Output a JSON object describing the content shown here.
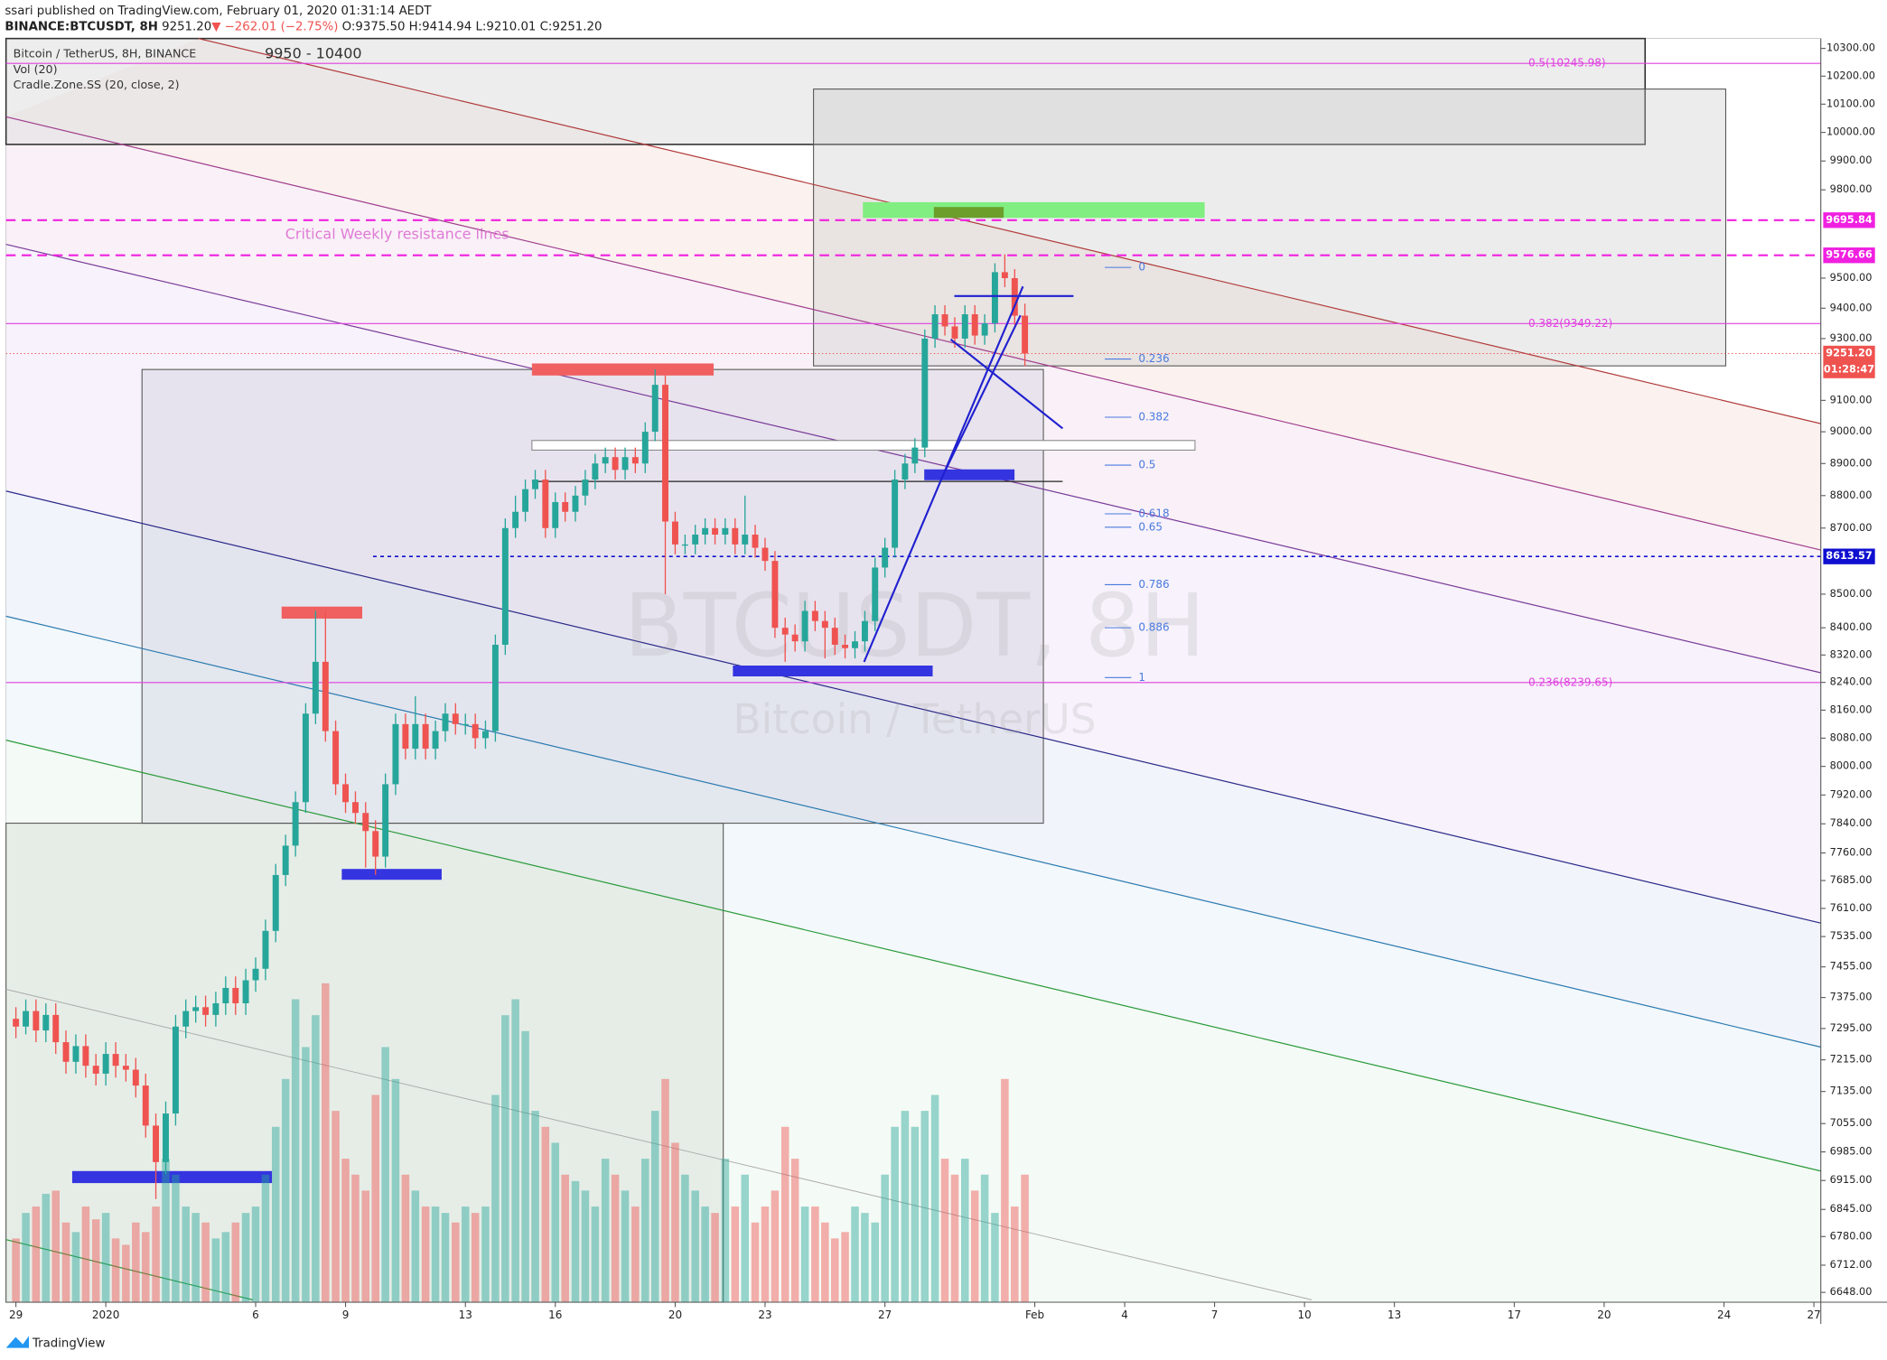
{
  "header": {
    "author_line": "ssari published on TradingView.com, February 01, 2020 01:31:14 AEDT",
    "symbol": "BINANCE:BTCUSDT, 8H",
    "last": "9251.20",
    "change": "▼ −262.01 (−2.75%)",
    "ohlc": "O:9375.50 H:9414.94 L:9210.01 C:9251.20"
  },
  "legend": [
    "Bitcoin / TetherUS, 8H, BINANCE",
    "Vol (20)",
    "Cradle.Zone.SS (20, close, 2)"
  ],
  "watermark": {
    "symbol": "BTCUSDT, 8H",
    "name": "Bitcoin / TetherUS"
  },
  "footer": "TradingView",
  "chart_data": {
    "type": "candlestick",
    "log_scale": true,
    "up_color": "#26a69a",
    "down_color": "#ef5350",
    "annotations": {
      "zone": "9950 - 10400",
      "resistance": "Critical Weekly resistance lines"
    },
    "x": [
      -3,
      -2.67,
      -2.33,
      -2,
      -1.67,
      -1.33,
      -1,
      -0.67,
      -0.33,
      0,
      0.33,
      0.67,
      1,
      1.33,
      1.67,
      2,
      2.33,
      2.67,
      3,
      3.33,
      3.67,
      4,
      4.33,
      4.67,
      5,
      5.33,
      5.67,
      6,
      6.33,
      6.67,
      7,
      7.33,
      7.67,
      8,
      8.33,
      8.67,
      9,
      9.33,
      9.67,
      10,
      10.33,
      10.67,
      11,
      11.33,
      11.67,
      12,
      12.33,
      12.67,
      13,
      13.33,
      13.67,
      14,
      14.33,
      14.67,
      15,
      15.33,
      15.67,
      16,
      16.33,
      16.67,
      17,
      17.33,
      17.67,
      18,
      18.33,
      18.67,
      19,
      19.33,
      19.67,
      20,
      20.33,
      20.67,
      21,
      21.33,
      21.67,
      22,
      22.33,
      22.67,
      23,
      23.33,
      23.67,
      24,
      24.33,
      24.67,
      25,
      25.33,
      25.67,
      26,
      26.33,
      26.67,
      27,
      27.33,
      27.67,
      28,
      28.33,
      28.67,
      29,
      29.33,
      29.67,
      30,
      30.33,
      30.67
    ],
    "open": [
      7320,
      7300,
      7340,
      7290,
      7330,
      7260,
      7210,
      7250,
      7200,
      7180,
      7230,
      7200,
      7190,
      7150,
      7050,
      6960,
      7080,
      7300,
      7340,
      7350,
      7330,
      7360,
      7400,
      7360,
      7420,
      7450,
      7550,
      7700,
      7780,
      7900,
      8150,
      8300,
      8100,
      7950,
      7900,
      7870,
      7820,
      7750,
      7950,
      8120,
      8050,
      8120,
      8050,
      8100,
      8150,
      8120,
      8120,
      8080,
      8100,
      8350,
      8700,
      8750,
      8820,
      8850,
      8700,
      8780,
      8750,
      8800,
      8850,
      8900,
      8920,
      8880,
      8920,
      8900,
      9000,
      9150,
      8720,
      8650,
      8650,
      8680,
      8700,
      8680,
      8700,
      8650,
      8680,
      8640,
      8600,
      8400,
      8380,
      8360,
      8450,
      8420,
      8400,
      8350,
      8340,
      8360,
      8420,
      8580,
      8640,
      8850,
      8900,
      8950,
      9300,
      9380,
      9340,
      9300,
      9380,
      9310,
      9350,
      9520,
      9500,
      9375.5
    ],
    "high": [
      7350,
      7370,
      7370,
      7360,
      7360,
      7290,
      7280,
      7280,
      7230,
      7260,
      7260,
      7230,
      7220,
      7180,
      7080,
      7110,
      7330,
      7370,
      7380,
      7380,
      7390,
      7430,
      7430,
      7450,
      7480,
      7580,
      7730,
      7810,
      7930,
      8180,
      8450,
      8450,
      8130,
      7980,
      7930,
      7900,
      7850,
      7980,
      8150,
      8150,
      8200,
      8150,
      8130,
      8180,
      8180,
      8150,
      8150,
      8130,
      8380,
      8730,
      8800,
      8850,
      8880,
      8880,
      8810,
      8810,
      8830,
      8880,
      8930,
      8950,
      8950,
      8950,
      8950,
      9030,
      9200,
      9180,
      8750,
      8680,
      8710,
      8730,
      8730,
      8730,
      8730,
      8800,
      8710,
      8670,
      8630,
      8430,
      8410,
      8480,
      8480,
      8450,
      8430,
      8380,
      8390,
      8450,
      8610,
      8670,
      8880,
      8930,
      8980,
      9330,
      9410,
      9410,
      9370,
      9410,
      9410,
      9380,
      9550,
      9580,
      9530,
      9414.94
    ],
    "low": [
      7270,
      7280,
      7260,
      7260,
      7230,
      7180,
      7180,
      7170,
      7150,
      7150,
      7170,
      7160,
      7120,
      7020,
      6870,
      6930,
      7050,
      7270,
      7310,
      7300,
      7300,
      7330,
      7330,
      7330,
      7390,
      7420,
      7520,
      7670,
      7750,
      7870,
      8120,
      8070,
      7920,
      7870,
      7840,
      7720,
      7700,
      7720,
      7920,
      8020,
      8020,
      8020,
      8020,
      8070,
      8090,
      8090,
      8050,
      8050,
      8070,
      8320,
      8670,
      8720,
      8790,
      8670,
      8670,
      8720,
      8720,
      8770,
      8820,
      8870,
      8850,
      8850,
      8870,
      8870,
      8970,
      8500,
      8620,
      8620,
      8620,
      8650,
      8650,
      8650,
      8620,
      8620,
      8610,
      8570,
      8370,
      8300,
      8330,
      8330,
      8390,
      8310,
      8320,
      8310,
      8310,
      8330,
      8390,
      8550,
      8610,
      8820,
      8870,
      8920,
      9270,
      9310,
      9270,
      9270,
      9280,
      9280,
      9320,
      9470,
      9345,
      9210.01
    ],
    "close": [
      7300,
      7340,
      7290,
      7330,
      7260,
      7210,
      7250,
      7200,
      7180,
      7230,
      7200,
      7190,
      7150,
      7050,
      6960,
      7080,
      7300,
      7340,
      7350,
      7330,
      7360,
      7400,
      7360,
      7420,
      7450,
      7550,
      7700,
      7780,
      7900,
      8150,
      8300,
      8100,
      7950,
      7900,
      7870,
      7820,
      7750,
      7950,
      8120,
      8050,
      8120,
      8050,
      8100,
      8150,
      8120,
      8120,
      8080,
      8100,
      8350,
      8700,
      8750,
      8820,
      8850,
      8700,
      8780,
      8750,
      8800,
      8850,
      8900,
      8920,
      8880,
      8920,
      8900,
      9000,
      9150,
      8720,
      8650,
      8650,
      8680,
      8700,
      8680,
      8700,
      8650,
      8680,
      8640,
      8600,
      8400,
      8380,
      8360,
      8450,
      8420,
      8400,
      8350,
      8340,
      8360,
      8420,
      8580,
      8640,
      8850,
      8900,
      8950,
      9300,
      9380,
      9340,
      9300,
      9380,
      9310,
      9350,
      9520,
      9500,
      9375.5,
      9251.2
    ],
    "volume": [
      20,
      28,
      30,
      34,
      35,
      25,
      22,
      30,
      26,
      28,
      20,
      18,
      25,
      22,
      30,
      45,
      40,
      30,
      28,
      25,
      20,
      22,
      25,
      28,
      30,
      40,
      55,
      70,
      95,
      80,
      90,
      100,
      60,
      45,
      40,
      35,
      65,
      80,
      70,
      40,
      35,
      30,
      30,
      28,
      25,
      30,
      28,
      30,
      65,
      90,
      95,
      85,
      60,
      55,
      50,
      40,
      38,
      35,
      30,
      45,
      40,
      35,
      30,
      45,
      60,
      70,
      50,
      40,
      35,
      30,
      28,
      45,
      30,
      40,
      25,
      30,
      35,
      55,
      45,
      30,
      30,
      25,
      20,
      22,
      30,
      28,
      25,
      40,
      55,
      60,
      55,
      60,
      65,
      45,
      40,
      45,
      35,
      40,
      28,
      70,
      30,
      40
    ],
    "xlim": [
      -3.33,
      57.23
    ],
    "xticks": [
      {
        "value": -3,
        "label": "29"
      },
      {
        "value": 0,
        "label": "2020"
      },
      {
        "value": 5,
        "label": "6"
      },
      {
        "value": 8,
        "label": "9"
      },
      {
        "value": 12,
        "label": "13"
      },
      {
        "value": 15,
        "label": "16"
      },
      {
        "value": 19,
        "label": "20"
      },
      {
        "value": 22,
        "label": "23"
      },
      {
        "value": 26,
        "label": "27"
      },
      {
        "value": 31,
        "label": "Feb"
      },
      {
        "value": 34,
        "label": "4"
      },
      {
        "value": 37,
        "label": "7"
      },
      {
        "value": 40,
        "label": "10"
      },
      {
        "value": 43,
        "label": "13"
      },
      {
        "value": 47,
        "label": "17"
      },
      {
        "value": 50,
        "label": "20"
      },
      {
        "value": 54,
        "label": "24"
      },
      {
        "value": 57,
        "label": "27"
      }
    ],
    "ylim": [
      6625,
      10336
    ],
    "yticks": [
      {
        "value": 10300,
        "label": "10300.00"
      },
      {
        "value": 10200,
        "label": "10200.00"
      },
      {
        "value": 10100,
        "label": "10100.00"
      },
      {
        "value": 10000,
        "label": "10000.00"
      },
      {
        "value": 9900,
        "label": "9900.00"
      },
      {
        "value": 9800,
        "label": "9800.00"
      },
      {
        "value": 9500,
        "label": "9500.00"
      },
      {
        "value": 9400,
        "label": "9400.00"
      },
      {
        "value": 9300,
        "label": "9300.00"
      },
      {
        "value": 9100,
        "label": "9100.00"
      },
      {
        "value": 9000,
        "label": "9000.00"
      },
      {
        "value": 8900,
        "label": "8900.00"
      },
      {
        "value": 8800,
        "label": "8800.00"
      },
      {
        "value": 8700,
        "label": "8700.00"
      },
      {
        "value": 8500,
        "label": "8500.00"
      },
      {
        "value": 8400,
        "label": "8400.00"
      },
      {
        "value": 8320,
        "label": "8320.00"
      },
      {
        "value": 8240,
        "label": "8240.00"
      },
      {
        "value": 8160,
        "label": "8160.00"
      },
      {
        "value": 8080,
        "label": "8080.00"
      },
      {
        "value": 8000,
        "label": "8000.00"
      },
      {
        "value": 7920,
        "label": "7920.00"
      },
      {
        "value": 7840,
        "label": "7840.00"
      },
      {
        "value": 7760,
        "label": "7760.00"
      },
      {
        "value": 7685,
        "label": "7685.00"
      },
      {
        "value": 7610,
        "label": "7610.00"
      },
      {
        "value": 7535,
        "label": "7535.00"
      },
      {
        "value": 7455,
        "label": "7455.00"
      },
      {
        "value": 7375,
        "label": "7375.00"
      },
      {
        "value": 7295,
        "label": "7295.00"
      },
      {
        "value": 7215,
        "label": "7215.00"
      },
      {
        "value": 7135,
        "label": "7135.00"
      },
      {
        "value": 7055,
        "label": "7055.00"
      },
      {
        "value": 6985,
        "label": "6985.00"
      },
      {
        "value": 6915,
        "label": "6915.00"
      },
      {
        "value": 6845,
        "label": "6845.00"
      },
      {
        "value": 6780,
        "label": "6780.00"
      },
      {
        "value": 6712,
        "label": "6712.00"
      },
      {
        "value": 6648,
        "label": "6648.00"
      }
    ],
    "fib": {
      "high": 9536,
      "low": 8254,
      "levels": [
        0,
        0.236,
        0.382,
        0.5,
        0.618,
        0.65,
        0.786,
        0.886,
        1
      ]
    },
    "fib_lines": [
      {
        "value": 10245.98,
        "label": "0.5(10245.98)"
      },
      {
        "value": 9349.22,
        "label": "0.382(9349.22)"
      },
      {
        "value": 8239.65,
        "label": "0.236(8239.65)"
      }
    ],
    "resistance_lines": [
      {
        "value": 9695.84,
        "label": "9695.84"
      },
      {
        "value": 9576.66,
        "label": "9576.66"
      }
    ],
    "last_price": {
      "value": 9251.2,
      "label": "9251.20",
      "countdown": "01:28:47"
    },
    "support_line": {
      "value": 8613.57,
      "label": "8613.57"
    }
  }
}
